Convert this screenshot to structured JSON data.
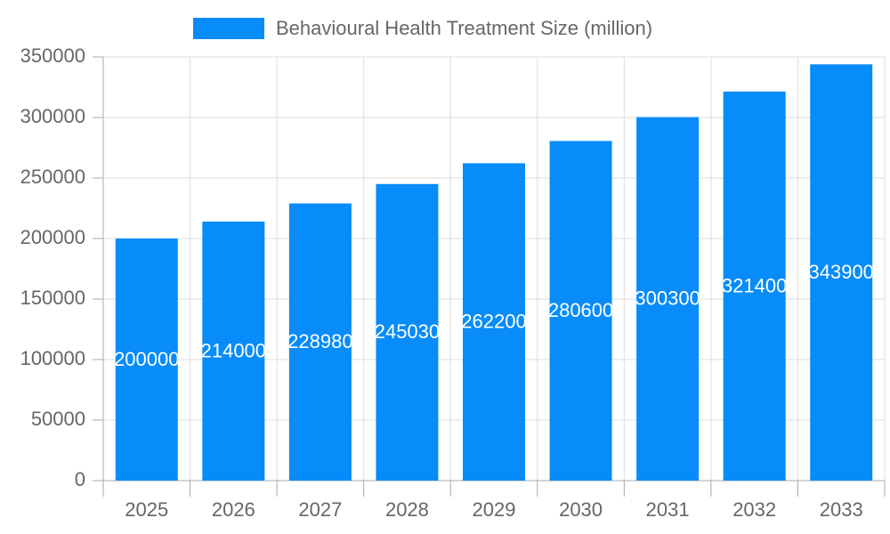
{
  "chart_data": {
    "type": "bar",
    "categories": [
      "2025",
      "2026",
      "2027",
      "2028",
      "2029",
      "2030",
      "2031",
      "2032",
      "2033"
    ],
    "series": [
      {
        "name": "Behavioural Health Treatment Size (million)",
        "color": "#078cf9",
        "values": [
          200000,
          214000,
          228980,
          245030,
          262200,
          280600,
          300300,
          321400,
          343900
        ]
      }
    ],
    "ylim": [
      0,
      350000
    ],
    "yticks": [
      0,
      50000,
      100000,
      150000,
      200000,
      250000,
      300000,
      350000
    ],
    "grid": true,
    "legend": "top"
  }
}
